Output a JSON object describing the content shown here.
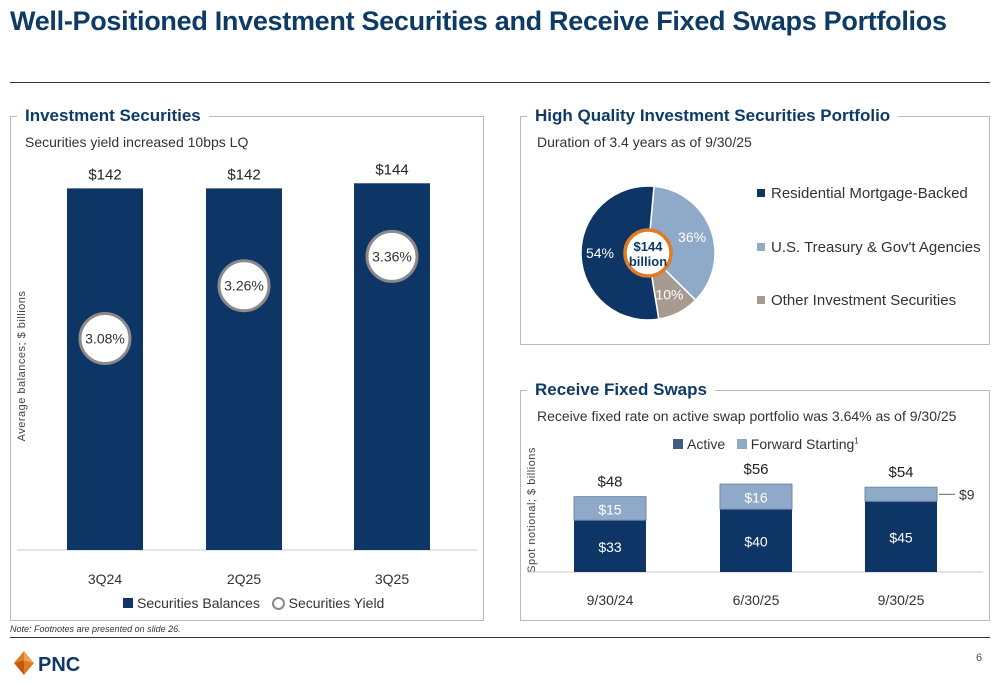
{
  "page": {
    "title": "Well-Positioned Investment Securities and Receive Fixed Swaps Portfolios",
    "footnote": "Note: Footnotes are presented on slide 26.",
    "page_number": "6",
    "logo_text": "PNC"
  },
  "colors": {
    "navy": "#0d3566",
    "light_blue": "#8fa9c9",
    "taupe": "#a79a90",
    "orange": "#e07b24",
    "ring_gray": "#8a8a8a"
  },
  "panels": {
    "investment": {
      "title": "Investment Securities",
      "subtitle": "Securities yield increased 10bps LQ",
      "ylabel": "Average balances; $ billions",
      "legend": [
        "Securities Balances",
        "Securities Yield"
      ]
    },
    "quality": {
      "title": "High Quality Investment Securities Portfolio",
      "subtitle": "Duration of 3.4 years as of 9/30/25",
      "center_label": [
        "$144",
        "billion"
      ]
    },
    "swaps": {
      "title": "Receive Fixed Swaps",
      "subtitle": "Receive fixed rate on active swap portfolio was 3.64% as of 9/30/25",
      "ylabel": "Spot notional; $ billions",
      "legend": [
        "Active",
        "Forward Starting"
      ],
      "legend_sup": "1"
    }
  },
  "chart_data": [
    {
      "type": "bar",
      "categories": [
        "3Q24",
        "2Q25",
        "3Q25"
      ],
      "series": [
        {
          "name": "Securities Balances",
          "values": [
            142,
            142,
            144
          ],
          "labels": [
            "$142",
            "$142",
            "$144"
          ]
        },
        {
          "name": "Securities Yield",
          "values": [
            3.08,
            3.26,
            3.36
          ],
          "labels": [
            "3.08%",
            "3.26%",
            "3.36%"
          ]
        }
      ],
      "ylabel": "Average balances; $ billions"
    },
    {
      "type": "pie",
      "labels": [
        "Residential Mortgage-Backed",
        "U.S. Treasury & Gov't Agencies",
        "Other Investment Securities"
      ],
      "values": [
        54,
        36,
        10
      ],
      "value_labels": [
        "54%",
        "36%",
        "10%"
      ],
      "total": "$144 billion"
    },
    {
      "type": "bar",
      "stacked": true,
      "categories": [
        "9/30/24",
        "6/30/25",
        "9/30/25"
      ],
      "series": [
        {
          "name": "Active",
          "values": [
            33,
            40,
            45
          ],
          "labels": [
            "$33",
            "$40",
            "$45"
          ]
        },
        {
          "name": "Forward Starting",
          "values": [
            15,
            16,
            9
          ],
          "labels": [
            "$15",
            "$16",
            "$9"
          ]
        }
      ],
      "totals": [
        48,
        56,
        54
      ],
      "total_labels": [
        "$48",
        "$56",
        "$54"
      ],
      "ylabel": "Spot notional; $ billions"
    }
  ]
}
